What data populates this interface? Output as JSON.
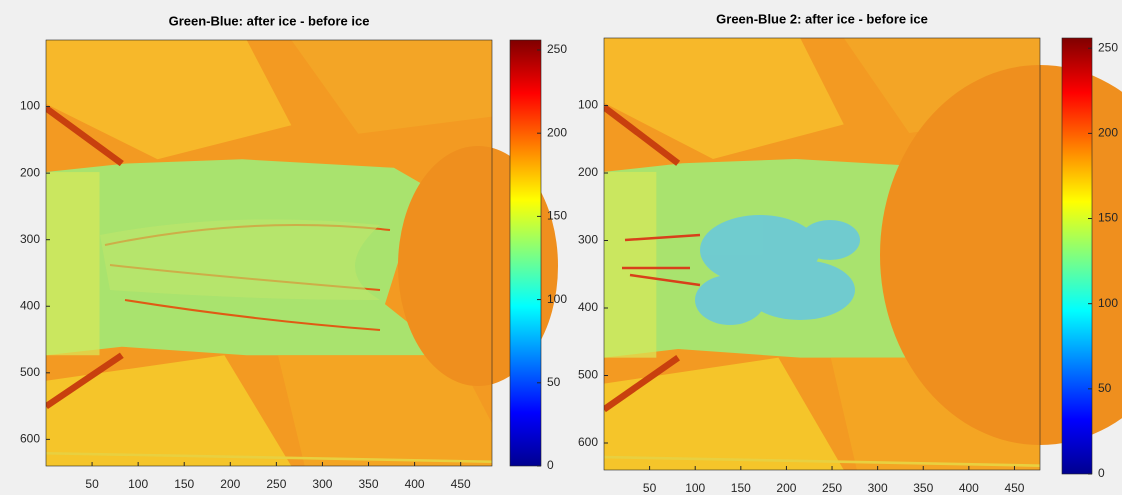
{
  "chart_data": [
    {
      "type": "image",
      "title": "Green-Blue: after ice - before ice",
      "xlim": [
        0,
        484
      ],
      "ylim": [
        0,
        640
      ],
      "y_reversed": true,
      "xticks": [
        50,
        100,
        150,
        200,
        250,
        300,
        350,
        400,
        450
      ],
      "yticks": [
        100,
        200,
        300,
        400,
        500,
        600
      ],
      "colormap": "jet",
      "colorbar": {
        "clim": [
          0,
          256
        ],
        "ticks": [
          0,
          50,
          100,
          150,
          200,
          250
        ]
      }
    },
    {
      "type": "image",
      "title": "Green-Blue 2: after ice - before ice",
      "xlim": [
        0,
        478
      ],
      "ylim": [
        0,
        640
      ],
      "y_reversed": true,
      "xticks": [
        50,
        100,
        150,
        200,
        250,
        300,
        350,
        400,
        450
      ],
      "yticks": [
        100,
        200,
        300,
        400,
        500,
        600
      ],
      "colormap": "jet",
      "colorbar": {
        "clim": [
          0,
          256
        ],
        "ticks": [
          0,
          50,
          100,
          150,
          200,
          250
        ]
      }
    }
  ]
}
